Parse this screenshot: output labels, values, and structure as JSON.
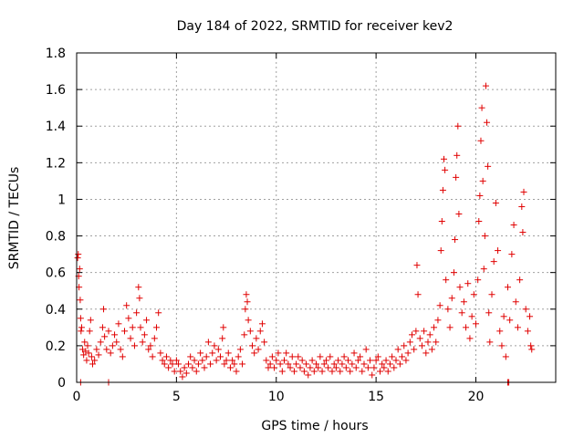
{
  "chart_data": {
    "type": "scatter",
    "title": "Day 184 of 2022, SRMTID for receiver kev2",
    "xlabel": "GPS time / hours",
    "ylabel": "SRMTID / TECUs",
    "xlim": [
      0,
      24
    ],
    "ylim": [
      0,
      1.8
    ],
    "x_ticks": [
      0,
      5,
      10,
      15,
      20
    ],
    "y_ticks": [
      0,
      0.2,
      0.4,
      0.6,
      0.8,
      1,
      1.2,
      1.4,
      1.6,
      1.8
    ],
    "x_tick_labels": [
      "0",
      "5",
      "10",
      "15",
      "20"
    ],
    "y_tick_labels": [
      "0",
      "0.2",
      "0.4",
      "0.6",
      "0.8",
      "1",
      "1.2",
      "1.4",
      "1.6",
      "1.8"
    ],
    "grid": true,
    "marker": "+",
    "color": "#e00000",
    "series": [
      {
        "name": "kev2",
        "points": [
          [
            0.05,
            0.68
          ],
          [
            0.08,
            0.7
          ],
          [
            0.1,
            0.58
          ],
          [
            0.12,
            0.52
          ],
          [
            0.15,
            0.62
          ],
          [
            0.18,
            0.45
          ],
          [
            0.2,
            0.35
          ],
          [
            0.22,
            0.28
          ],
          [
            0.25,
            0.3
          ],
          [
            0.3,
            0.18
          ],
          [
            0.35,
            0.15
          ],
          [
            0.4,
            0.22
          ],
          [
            0.45,
            0.17
          ],
          [
            0.5,
            0.12
          ],
          [
            0.55,
            0.2
          ],
          [
            0.6,
            0.16
          ],
          [
            0.65,
            0.28
          ],
          [
            0.7,
            0.34
          ],
          [
            0.75,
            0.14
          ],
          [
            0.8,
            0.1
          ],
          [
            0.9,
            0.12
          ],
          [
            1.0,
            0.18
          ],
          [
            1.1,
            0.15
          ],
          [
            1.2,
            0.22
          ],
          [
            1.3,
            0.3
          ],
          [
            1.35,
            0.4
          ],
          [
            1.4,
            0.25
          ],
          [
            1.5,
            0.18
          ],
          [
            1.6,
            0.28
          ],
          [
            1.7,
            0.16
          ],
          [
            1.8,
            0.2
          ],
          [
            1.9,
            0.26
          ],
          [
            2.0,
            0.22
          ],
          [
            2.1,
            0.32
          ],
          [
            2.2,
            0.18
          ],
          [
            2.3,
            0.14
          ],
          [
            2.4,
            0.28
          ],
          [
            2.5,
            0.42
          ],
          [
            2.6,
            0.35
          ],
          [
            2.7,
            0.24
          ],
          [
            2.8,
            0.3
          ],
          [
            2.9,
            0.2
          ],
          [
            3.0,
            0.38
          ],
          [
            3.1,
            0.52
          ],
          [
            3.15,
            0.46
          ],
          [
            3.2,
            0.3
          ],
          [
            3.3,
            0.22
          ],
          [
            3.4,
            0.26
          ],
          [
            3.5,
            0.34
          ],
          [
            3.6,
            0.18
          ],
          [
            3.7,
            0.2
          ],
          [
            3.8,
            0.14
          ],
          [
            3.9,
            0.24
          ],
          [
            4.0,
            0.3
          ],
          [
            4.1,
            0.38
          ],
          [
            4.2,
            0.16
          ],
          [
            4.3,
            0.12
          ],
          [
            4.4,
            0.1
          ],
          [
            4.5,
            0.14
          ],
          [
            4.6,
            0.08
          ],
          [
            4.7,
            0.12
          ],
          [
            4.8,
            0.1
          ],
          [
            4.9,
            0.06
          ],
          [
            5.0,
            0.12
          ],
          [
            5.1,
            0.1
          ],
          [
            5.2,
            0.06
          ],
          [
            5.3,
            0.03
          ],
          [
            5.4,
            0.08
          ],
          [
            5.5,
            0.05
          ],
          [
            5.6,
            0.1
          ],
          [
            5.7,
            0.14
          ],
          [
            5.8,
            0.08
          ],
          [
            5.9,
            0.12
          ],
          [
            6.0,
            0.06
          ],
          [
            6.1,
            0.1
          ],
          [
            6.2,
            0.16
          ],
          [
            6.3,
            0.12
          ],
          [
            6.4,
            0.08
          ],
          [
            6.5,
            0.14
          ],
          [
            6.6,
            0.22
          ],
          [
            6.7,
            0.1
          ],
          [
            6.8,
            0.16
          ],
          [
            6.9,
            0.2
          ],
          [
            7.0,
            0.12
          ],
          [
            7.1,
            0.18
          ],
          [
            7.2,
            0.14
          ],
          [
            7.3,
            0.24
          ],
          [
            7.35,
            0.3
          ],
          [
            7.4,
            0.1
          ],
          [
            7.5,
            0.12
          ],
          [
            7.6,
            0.16
          ],
          [
            7.7,
            0.08
          ],
          [
            7.8,
            0.12
          ],
          [
            7.9,
            0.1
          ],
          [
            8.0,
            0.06
          ],
          [
            8.1,
            0.14
          ],
          [
            8.2,
            0.18
          ],
          [
            8.3,
            0.1
          ],
          [
            8.4,
            0.26
          ],
          [
            8.45,
            0.4
          ],
          [
            8.5,
            0.48
          ],
          [
            8.55,
            0.44
          ],
          [
            8.6,
            0.34
          ],
          [
            8.7,
            0.28
          ],
          [
            8.8,
            0.2
          ],
          [
            8.9,
            0.16
          ],
          [
            9.0,
            0.24
          ],
          [
            9.1,
            0.18
          ],
          [
            9.2,
            0.28
          ],
          [
            9.3,
            0.32
          ],
          [
            9.4,
            0.22
          ],
          [
            9.5,
            0.12
          ],
          [
            9.6,
            0.08
          ],
          [
            9.7,
            0.1
          ],
          [
            9.8,
            0.14
          ],
          [
            9.9,
            0.08
          ],
          [
            10.0,
            0.12
          ],
          [
            10.1,
            0.16
          ],
          [
            10.2,
            0.1
          ],
          [
            10.3,
            0.06
          ],
          [
            10.4,
            0.12
          ],
          [
            10.5,
            0.16
          ],
          [
            10.6,
            0.1
          ],
          [
            10.7,
            0.08
          ],
          [
            10.8,
            0.14
          ],
          [
            10.9,
            0.06
          ],
          [
            11.0,
            0.1
          ],
          [
            11.1,
            0.14
          ],
          [
            11.2,
            0.08
          ],
          [
            11.3,
            0.12
          ],
          [
            11.4,
            0.06
          ],
          [
            11.5,
            0.1
          ],
          [
            11.6,
            0.04
          ],
          [
            11.7,
            0.08
          ],
          [
            11.8,
            0.12
          ],
          [
            11.9,
            0.06
          ],
          [
            12.0,
            0.1
          ],
          [
            12.1,
            0.08
          ],
          [
            12.2,
            0.14
          ],
          [
            12.3,
            0.06
          ],
          [
            12.4,
            0.1
          ],
          [
            12.5,
            0.12
          ],
          [
            12.6,
            0.08
          ],
          [
            12.7,
            0.14
          ],
          [
            12.8,
            0.06
          ],
          [
            12.9,
            0.1
          ],
          [
            13.0,
            0.08
          ],
          [
            13.1,
            0.12
          ],
          [
            13.2,
            0.06
          ],
          [
            13.3,
            0.1
          ],
          [
            13.4,
            0.14
          ],
          [
            13.5,
            0.08
          ],
          [
            13.6,
            0.12
          ],
          [
            13.7,
            0.06
          ],
          [
            13.8,
            0.1
          ],
          [
            13.9,
            0.16
          ],
          [
            14.0,
            0.08
          ],
          [
            14.1,
            0.12
          ],
          [
            14.2,
            0.14
          ],
          [
            14.3,
            0.06
          ],
          [
            14.4,
            0.1
          ],
          [
            14.5,
            0.18
          ],
          [
            14.6,
            0.08
          ],
          [
            14.7,
            0.12
          ],
          [
            14.8,
            0.04
          ],
          [
            14.9,
            0.08
          ],
          [
            15.0,
            0.12
          ],
          [
            15.1,
            0.14
          ],
          [
            15.2,
            0.06
          ],
          [
            15.3,
            0.1
          ],
          [
            15.4,
            0.08
          ],
          [
            15.5,
            0.12
          ],
          [
            15.6,
            0.06
          ],
          [
            15.7,
            0.1
          ],
          [
            15.8,
            0.14
          ],
          [
            15.9,
            0.08
          ],
          [
            16.0,
            0.12
          ],
          [
            16.1,
            0.18
          ],
          [
            16.2,
            0.1
          ],
          [
            16.3,
            0.14
          ],
          [
            16.4,
            0.2
          ],
          [
            16.5,
            0.12
          ],
          [
            16.6,
            0.16
          ],
          [
            16.7,
            0.22
          ],
          [
            16.8,
            0.26
          ],
          [
            16.9,
            0.18
          ],
          [
            17.0,
            0.28
          ],
          [
            17.05,
            0.64
          ],
          [
            17.1,
            0.48
          ],
          [
            17.2,
            0.24
          ],
          [
            17.3,
            0.2
          ],
          [
            17.4,
            0.28
          ],
          [
            17.5,
            0.16
          ],
          [
            17.6,
            0.22
          ],
          [
            17.7,
            0.26
          ],
          [
            17.8,
            0.18
          ],
          [
            17.9,
            0.3
          ],
          [
            18.0,
            0.22
          ],
          [
            18.1,
            0.34
          ],
          [
            18.2,
            0.42
          ],
          [
            18.25,
            0.72
          ],
          [
            18.3,
            0.88
          ],
          [
            18.35,
            1.05
          ],
          [
            18.4,
            1.22
          ],
          [
            18.45,
            1.16
          ],
          [
            18.5,
            0.56
          ],
          [
            18.6,
            0.4
          ],
          [
            18.7,
            0.3
          ],
          [
            18.8,
            0.46
          ],
          [
            18.9,
            0.6
          ],
          [
            18.95,
            0.78
          ],
          [
            19.0,
            1.12
          ],
          [
            19.05,
            1.24
          ],
          [
            19.1,
            1.4
          ],
          [
            19.15,
            0.92
          ],
          [
            19.2,
            0.52
          ],
          [
            19.3,
            0.38
          ],
          [
            19.4,
            0.44
          ],
          [
            19.5,
            0.3
          ],
          [
            19.6,
            0.54
          ],
          [
            19.7,
            0.24
          ],
          [
            19.8,
            0.36
          ],
          [
            19.9,
            0.48
          ],
          [
            20.0,
            0.32
          ],
          [
            20.1,
            0.56
          ],
          [
            20.15,
            0.88
          ],
          [
            20.2,
            1.02
          ],
          [
            20.25,
            1.32
          ],
          [
            20.3,
            1.5
          ],
          [
            20.35,
            1.1
          ],
          [
            20.4,
            0.62
          ],
          [
            20.45,
            0.8
          ],
          [
            20.5,
            1.62
          ],
          [
            20.55,
            1.42
          ],
          [
            20.6,
            1.18
          ],
          [
            20.65,
            0.38
          ],
          [
            20.7,
            0.22
          ],
          [
            20.8,
            0.48
          ],
          [
            20.9,
            0.66
          ],
          [
            21.0,
            0.98
          ],
          [
            21.1,
            0.72
          ],
          [
            21.2,
            0.28
          ],
          [
            21.3,
            0.2
          ],
          [
            21.4,
            0.36
          ],
          [
            21.5,
            0.14
          ],
          [
            21.6,
            0.52
          ],
          [
            21.7,
            0.34
          ],
          [
            21.8,
            0.7
          ],
          [
            21.9,
            0.86
          ],
          [
            22.0,
            0.44
          ],
          [
            22.1,
            0.3
          ],
          [
            22.2,
            0.56
          ],
          [
            22.3,
            0.96
          ],
          [
            22.35,
            0.82
          ],
          [
            22.4,
            1.04
          ],
          [
            22.5,
            0.4
          ],
          [
            22.6,
            0.28
          ],
          [
            22.7,
            0.36
          ],
          [
            22.75,
            0.2
          ],
          [
            22.8,
            0.18
          ],
          [
            0.2,
            0.0
          ],
          [
            1.6,
            0.0
          ],
          [
            21.6,
            0.0
          ],
          [
            21.65,
            0.0
          ]
        ]
      }
    ]
  }
}
